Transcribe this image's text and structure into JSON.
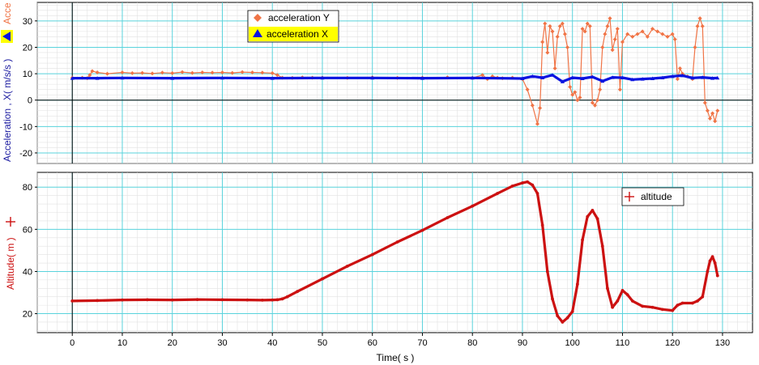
{
  "window": {},
  "chart_data": [
    {
      "type": "scatter",
      "title": "",
      "xlabel": "Time( s )",
      "ylabel_x_series": "Acceleration , X( m/s/s )",
      "ylabel_y_series": "Acce",
      "xlim": [
        -7,
        136
      ],
      "ylim": [
        -24,
        37
      ],
      "x_ticks": [
        0,
        10,
        20,
        30,
        40,
        50,
        60,
        70,
        80,
        90,
        100,
        110,
        120,
        130
      ],
      "y_ticks": [
        -20,
        -10,
        0,
        10,
        20,
        30
      ],
      "grid": true,
      "legend": {
        "placement": "top-center",
        "entries": [
          "acceleration Y",
          "acceleration X"
        ]
      },
      "series": [
        {
          "name": "acceleration Y",
          "color": "#F07446",
          "marker": "diamond",
          "x": [
            0,
            2,
            3,
            3.5,
            4,
            5,
            7,
            10,
            12,
            14,
            16,
            18,
            20,
            22,
            24,
            26,
            28,
            30,
            32,
            34,
            36,
            38,
            40,
            41,
            42,
            44,
            46,
            48,
            50,
            55,
            60,
            65,
            70,
            75,
            80,
            82,
            83,
            84,
            85,
            86,
            88,
            90,
            91,
            92,
            93,
            93.5,
            94,
            94.5,
            95,
            95.5,
            96,
            96.5,
            97,
            97.5,
            98,
            98.5,
            99,
            99.5,
            100,
            100.5,
            101,
            101.5,
            102,
            102.5,
            103,
            103.5,
            104,
            104.5,
            105,
            105.5,
            106,
            106.5,
            107,
            107.5,
            108,
            108.5,
            109,
            109.5,
            110,
            111,
            112,
            113,
            114,
            115,
            116,
            117,
            118,
            119,
            120,
            120.5,
            121,
            121.5,
            122,
            123,
            124,
            124.5,
            125,
            125.5,
            126,
            126.5,
            127,
            127.5,
            128,
            128.5,
            129
          ],
          "y": [
            8.5,
            8.5,
            8.3,
            9.5,
            11,
            10.5,
            10,
            10.5,
            10.2,
            10.3,
            10.1,
            10.4,
            10.2,
            10.6,
            10.3,
            10.5,
            10.4,
            10.5,
            10.3,
            10.6,
            10.5,
            10.4,
            10.2,
            9.5,
            8.5,
            8.4,
            8.6,
            8.5,
            8.5,
            8.4,
            8.6,
            8.4,
            8.5,
            8.6,
            8.4,
            9.5,
            8,
            9,
            8.5,
            8.3,
            8.5,
            8,
            4,
            -2,
            -9,
            -3,
            22,
            29,
            18,
            28,
            26,
            12,
            24,
            28,
            29,
            25,
            20,
            5,
            2,
            3,
            0,
            1,
            27,
            26,
            29,
            28,
            -1,
            -2,
            0,
            4,
            20,
            25,
            28,
            31,
            19,
            23,
            27,
            4,
            22,
            25,
            24,
            25,
            26,
            24,
            27,
            26,
            25,
            24,
            25,
            23,
            8,
            12,
            10,
            9,
            8,
            20,
            28,
            31,
            28,
            -1,
            -4,
            -7,
            -5,
            -8,
            -4
          ],
          "values_note": ""
        },
        {
          "name": "acceleration X",
          "color": "#0A14E0",
          "marker": "triangle",
          "x": [
            0,
            5,
            10,
            20,
            30,
            40,
            50,
            60,
            70,
            80,
            90,
            92,
            94,
            96,
            98,
            100,
            102,
            104,
            106,
            108,
            110,
            112,
            114,
            116,
            118,
            120,
            122,
            124,
            126,
            128,
            129
          ],
          "y": [
            8.3,
            8.3,
            8.4,
            8.3,
            8.4,
            8.3,
            8.4,
            8.4,
            8.3,
            8.4,
            8.2,
            9,
            8.5,
            9.5,
            7,
            8.5,
            8.2,
            8.8,
            7.2,
            8.6,
            8.5,
            7.8,
            8,
            8.2,
            8.5,
            9,
            9.3,
            8.4,
            8.6,
            8.3,
            8.4
          ]
        }
      ]
    },
    {
      "type": "scatter",
      "title": "",
      "xlabel": "Time( s )",
      "ylabel": "Altitude( m )",
      "xlim": [
        -7,
        136
      ],
      "ylim": [
        11,
        87
      ],
      "x_ticks": [
        0,
        10,
        20,
        30,
        40,
        50,
        60,
        70,
        80,
        90,
        100,
        110,
        120,
        130
      ],
      "y_ticks": [
        20,
        40,
        60,
        80
      ],
      "grid": true,
      "legend": {
        "placement": "top-right",
        "entries": [
          "altitude"
        ]
      },
      "series": [
        {
          "name": "altitude",
          "color": "#CC1111",
          "marker": "cross",
          "x": [
            0,
            5,
            10,
            15,
            20,
            25,
            30,
            35,
            38,
            40,
            41,
            42,
            43,
            45,
            50,
            55,
            60,
            65,
            70,
            75,
            80,
            85,
            88,
            90,
            91,
            92,
            93,
            94,
            95,
            96,
            97,
            98,
            99,
            100,
            101,
            102,
            103,
            104,
            105,
            106,
            107,
            108,
            109,
            110,
            111,
            112,
            114,
            116,
            118,
            120,
            121,
            122,
            124,
            125,
            126,
            127,
            127.5,
            128,
            128.5,
            129
          ],
          "y": [
            26,
            26.2,
            26.5,
            26.6,
            26.5,
            26.7,
            26.6,
            26.5,
            26.4,
            26.5,
            26.6,
            27,
            28,
            30.5,
            36.5,
            42.5,
            48,
            54,
            59.5,
            65.5,
            71,
            77,
            80.5,
            82,
            82.5,
            81,
            77,
            62,
            40,
            27,
            19,
            16,
            18,
            21,
            34,
            55,
            66,
            69,
            65,
            52,
            32,
            23,
            26,
            31,
            29,
            26,
            23.5,
            23,
            22,
            21.5,
            24,
            25,
            25,
            26,
            28,
            40,
            45,
            47,
            44,
            38
          ]
        }
      ]
    }
  ]
}
